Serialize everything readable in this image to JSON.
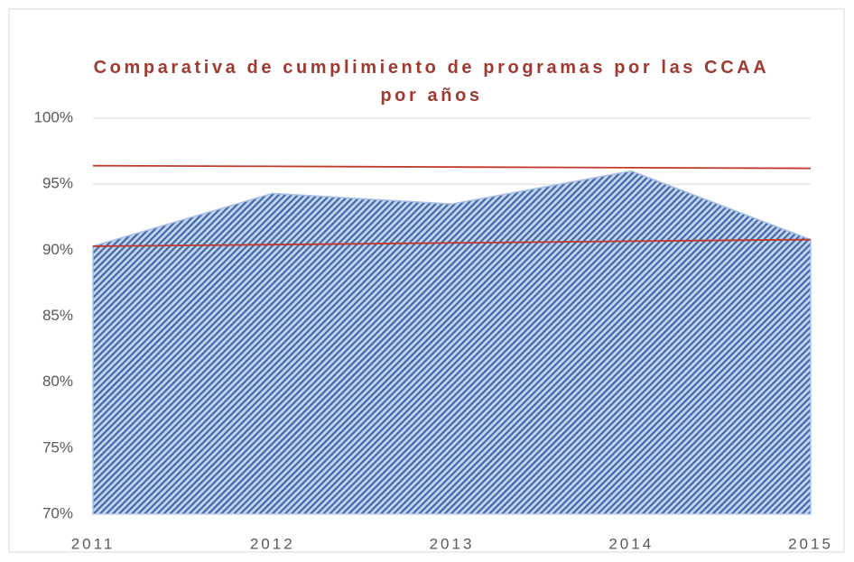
{
  "chart_data": {
    "type": "area",
    "title": "Comparativa de cumplimiento de programas por las CCAA por años",
    "categories": [
      "2011",
      "2012",
      "2013",
      "2014",
      "2015"
    ],
    "series": [
      {
        "type": "area",
        "color": "#4a74b8",
        "values": [
          90.3,
          94.3,
          93.5,
          96.0,
          90.8
        ]
      },
      {
        "type": "line",
        "color": "#c0392b",
        "values": [
          96.4,
          96.35,
          96.3,
          96.25,
          96.2
        ]
      },
      {
        "type": "line",
        "color": "#c0392b",
        "values": [
          90.3,
          90.42,
          90.55,
          90.68,
          90.8
        ]
      }
    ],
    "ylim": [
      70,
      100
    ],
    "yticks": [
      {
        "value": 70,
        "label": "70%"
      },
      {
        "value": 75,
        "label": "75%"
      },
      {
        "value": 80,
        "label": "80%"
      },
      {
        "value": 85,
        "label": "85%"
      },
      {
        "value": 90,
        "label": "90%"
      },
      {
        "value": 95,
        "label": "95%"
      },
      {
        "value": 100,
        "label": "100%"
      }
    ],
    "grid": true
  }
}
